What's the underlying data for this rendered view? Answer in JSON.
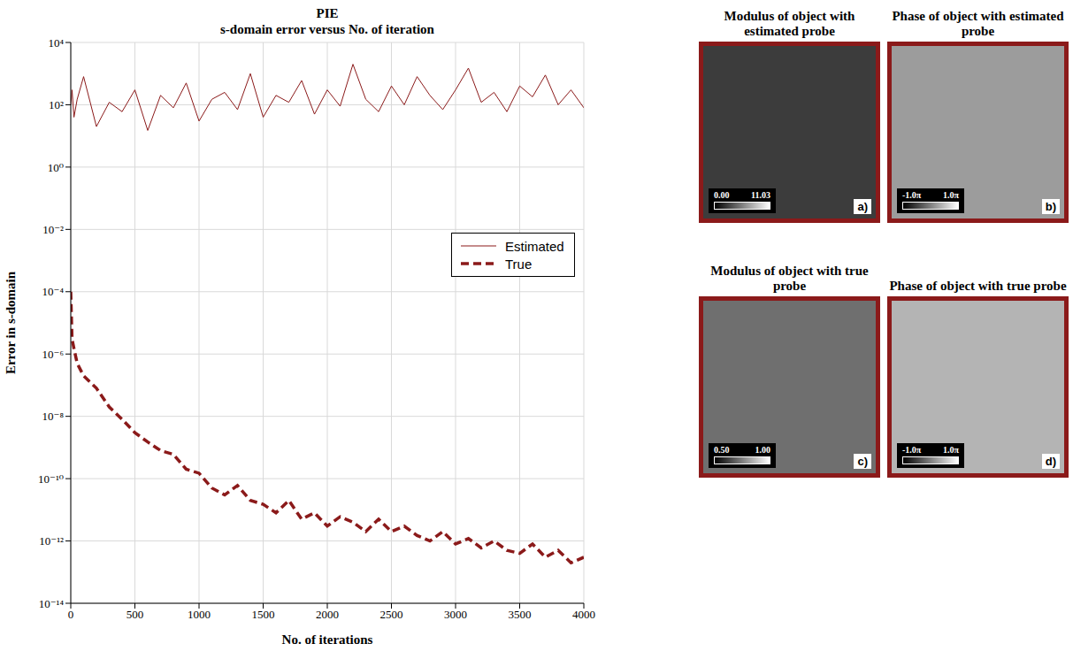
{
  "chart_data": {
    "type": "line",
    "title": "PIE",
    "subtitle": "s-domain error versus No. of iteration",
    "x_label": "No. of iterations",
    "y_label": "Error in s-domain",
    "log": "y",
    "grid": true,
    "legend": "right",
    "xlim": [
      0,
      4000
    ],
    "xticks": [
      0,
      500,
      1000,
      1500,
      2000,
      2500,
      3000,
      3500,
      4000
    ],
    "ylim": [
      1e-14,
      10000
    ],
    "yticks": [
      {
        "value": 1e-14,
        "label": "10⁻¹⁴"
      },
      {
        "value": 1e-12,
        "label": "10⁻¹²"
      },
      {
        "value": 1e-10,
        "label": "10⁻¹⁰"
      },
      {
        "value": 1e-08,
        "label": "10⁻⁸"
      },
      {
        "value": 1e-06,
        "label": "10⁻⁶"
      },
      {
        "value": 0.0001,
        "label": "10⁻⁴"
      },
      {
        "value": 0.01,
        "label": "10⁻²"
      },
      {
        "value": 1,
        "label": "10⁰"
      },
      {
        "value": 100,
        "label": "10²"
      },
      {
        "value": 10000,
        "label": "10⁴"
      }
    ],
    "x": [
      0,
      10,
      25,
      50,
      100,
      200,
      300,
      400,
      500,
      600,
      700,
      800,
      900,
      1000,
      1100,
      1200,
      1300,
      1400,
      1500,
      1600,
      1700,
      1800,
      1900,
      2000,
      2100,
      2200,
      2300,
      2400,
      2500,
      2600,
      2700,
      2800,
      2900,
      3000,
      3100,
      3200,
      3300,
      3400,
      3500,
      3600,
      3700,
      3800,
      3900,
      4000
    ],
    "series": [
      {
        "name": "Estimated",
        "color": "#8b1a1a",
        "line_style": "solid",
        "values": [
          100,
          300,
          40,
          150,
          800,
          20,
          120,
          60,
          300,
          15,
          200,
          80,
          500,
          30,
          150,
          250,
          70,
          1000,
          40,
          200,
          120,
          600,
          50,
          300,
          90,
          2000,
          150,
          60,
          400,
          100,
          800,
          200,
          70,
          300,
          1500,
          120,
          250,
          60,
          400,
          180,
          900,
          100,
          300,
          80
        ]
      },
      {
        "name": "True",
        "color": "#8b1a1a",
        "line_style": "dashed",
        "values": [
          0.0001,
          3e-06,
          1.5e-06,
          5e-07,
          2e-07,
          8e-08,
          2e-08,
          8e-09,
          3e-09,
          1.5e-09,
          8e-10,
          6e-10,
          2e-10,
          1.5e-10,
          5e-11,
          3e-11,
          6e-11,
          2e-11,
          1.5e-11,
          8e-12,
          2e-11,
          5e-12,
          8e-12,
          3e-12,
          6e-12,
          4e-12,
          2e-12,
          5e-12,
          2e-12,
          3e-12,
          1.5e-12,
          1e-12,
          2e-12,
          8e-13,
          1.2e-12,
          6e-13,
          1e-12,
          5e-13,
          4e-13,
          8e-13,
          3e-13,
          5e-13,
          2e-13,
          3e-13
        ]
      }
    ]
  },
  "panels": [
    {
      "title": "Modulus of object with estimated probe",
      "letter": "a)",
      "colorbar_range": [
        0,
        11.03
      ],
      "colorbar_ticks": [
        {
          "value": 0,
          "label": "0.00"
        },
        {
          "value": 11.03,
          "label": "11.03"
        }
      ]
    },
    {
      "title": "Phase of object with estimated probe",
      "letter": "b)",
      "colorbar_range": [
        -1,
        1
      ],
      "colorbar_ticks": [
        {
          "value": -1,
          "label": "-1.0π"
        },
        {
          "value": 1,
          "label": "1.0π"
        }
      ]
    },
    {
      "title": "Modulus of object with true probe",
      "letter": "c)",
      "colorbar_range": [
        0.5,
        1
      ],
      "colorbar_ticks": [
        {
          "value": 0.5,
          "label": "0.50"
        },
        {
          "value": 1,
          "label": "1.00"
        }
      ]
    },
    {
      "title": "Phase of object with true probe",
      "letter": "d)",
      "colorbar_range": [
        -1,
        1
      ],
      "colorbar_ticks": [
        {
          "value": -1,
          "label": "-1.0π"
        },
        {
          "value": 1,
          "label": "1.0π"
        }
      ]
    }
  ]
}
